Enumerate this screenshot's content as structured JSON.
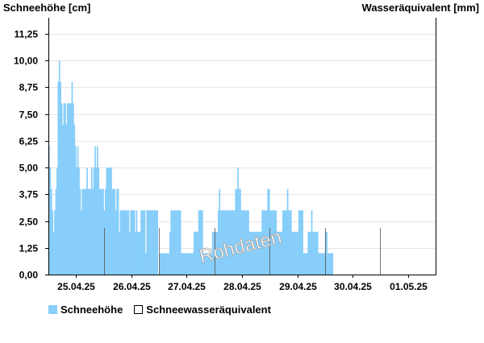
{
  "header": {
    "left_axis_title": "Schneehöhe [cm]",
    "right_axis_title": "Wasseräquivalent [mm]"
  },
  "watermark": "Rohdaten",
  "legend": [
    {
      "label": "Schneehöhe",
      "color": "#87cefa"
    },
    {
      "label": "Schneewasseräquivalent",
      "color": "#ffffff"
    }
  ],
  "chart_data": {
    "type": "bar",
    "ylabel": "Schneehöhe [cm]",
    "y2label": "Wasseräquivalent [mm]",
    "ylim": [
      0,
      12.0
    ],
    "yticks": [
      "0,00",
      "1,25",
      "2,50",
      "3,75",
      "5,00",
      "6,25",
      "7,50",
      "8,75",
      "10,00",
      "11,25"
    ],
    "ytick_values": [
      0,
      1.25,
      2.5,
      3.75,
      5.0,
      6.25,
      7.5,
      8.75,
      10.0,
      11.25
    ],
    "xlim": [
      0,
      7.0
    ],
    "xticks": [
      "25.04.25",
      "26.04.25",
      "27.04.25",
      "28.04.25",
      "29.04.25",
      "30.04.25",
      "01.05.25"
    ],
    "xtick_values": [
      0.5,
      1.5,
      2.5,
      3.5,
      4.5,
      5.5,
      6.5
    ],
    "grid": true,
    "series": [
      {
        "name": "Schneehöhe",
        "color": "#87cefa",
        "x_start": 0,
        "x_step": 0.02083,
        "values": [
          6,
          5,
          4,
          3,
          2,
          3,
          4,
          5,
          9,
          10,
          9,
          8,
          7,
          8,
          8,
          7,
          8,
          8,
          8,
          8,
          9,
          8,
          7,
          6,
          5,
          6,
          5,
          4,
          3,
          4,
          4,
          4,
          4,
          5,
          4,
          4,
          4,
          5,
          4,
          5,
          6,
          5,
          6,
          5,
          4,
          4,
          4,
          4,
          3,
          4,
          5,
          5,
          5,
          5,
          5,
          4,
          4,
          4,
          3,
          4,
          4,
          2,
          3,
          3,
          3,
          3,
          3,
          3,
          3,
          3,
          2,
          3,
          3,
          3,
          3,
          2,
          3,
          2,
          2,
          2,
          3,
          3,
          3,
          3,
          1,
          3,
          3,
          3,
          3,
          3,
          3,
          3,
          3,
          3,
          3,
          0,
          1,
          1,
          1,
          1,
          1,
          1,
          1,
          1,
          1,
          2,
          3,
          3,
          3,
          3,
          3,
          3,
          3,
          3,
          3,
          1,
          1,
          1,
          1,
          1,
          1,
          1,
          1,
          1,
          1,
          1,
          2,
          2,
          2,
          2,
          3,
          3,
          3,
          3,
          1,
          1,
          1,
          1,
          1,
          1,
          1,
          1,
          2,
          2,
          2,
          2,
          2,
          3,
          4,
          3,
          3,
          3,
          3,
          3,
          3,
          3,
          3,
          3,
          3,
          3,
          3,
          3,
          4,
          4,
          5,
          4,
          4,
          3,
          3,
          3,
          3,
          3,
          3,
          3,
          2,
          2,
          2,
          2,
          2,
          2,
          2,
          2,
          2,
          2,
          2,
          3,
          3,
          3,
          3,
          3,
          4,
          4,
          3,
          3,
          3,
          3,
          3,
          3,
          2,
          2,
          2,
          2,
          2,
          3,
          3,
          3,
          3,
          4,
          3,
          3,
          3,
          2,
          2,
          2,
          2,
          2,
          2,
          3,
          3,
          3,
          3,
          1,
          1,
          1,
          1,
          2,
          2,
          2,
          3,
          2,
          2,
          2,
          2,
          2,
          1,
          1,
          1,
          1,
          1,
          1,
          2,
          2,
          1,
          1,
          1,
          1,
          1,
          0,
          0,
          0,
          0,
          0,
          0,
          0,
          0,
          0,
          0,
          0,
          0,
          0,
          0,
          0,
          0,
          0,
          0,
          0,
          0,
          0,
          0,
          0,
          0,
          0,
          0,
          0,
          0,
          0,
          0,
          0,
          0,
          0,
          0,
          0,
          0,
          0,
          0,
          0,
          0,
          0,
          0,
          0,
          0,
          0,
          0,
          0,
          0,
          0,
          0,
          0,
          0,
          0,
          0,
          0,
          0,
          0,
          0,
          0,
          0
        ]
      },
      {
        "name": "Schneewasseräquivalent",
        "color": "#ffffff",
        "values": []
      }
    ]
  }
}
